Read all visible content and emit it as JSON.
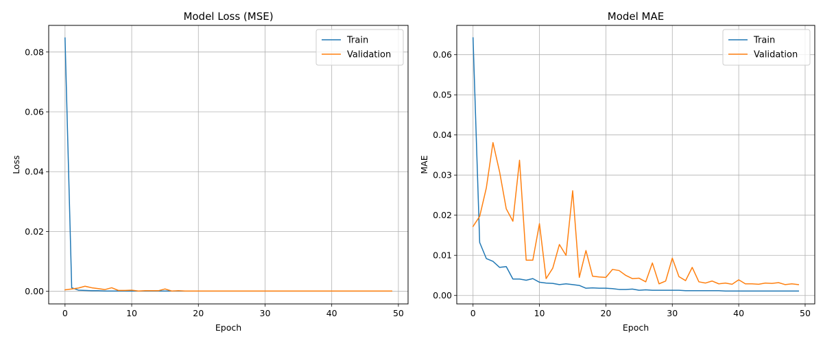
{
  "chart_data": [
    {
      "type": "line",
      "title": "Model Loss (MSE)",
      "xlabel": "Epoch",
      "ylabel": "Loss",
      "xlim": [
        -2.45,
        51.45
      ],
      "ylim": [
        -0.0042,
        0.0889
      ],
      "xticks": [
        0,
        10,
        20,
        30,
        40,
        50
      ],
      "xtick_labels": [
        "0",
        "10",
        "20",
        "30",
        "40",
        "50"
      ],
      "yticks": [
        0.0,
        0.02,
        0.04,
        0.06,
        0.08
      ],
      "ytick_labels": [
        "0.00",
        "0.02",
        "0.04",
        "0.06",
        "0.08"
      ],
      "grid": true,
      "legend": "top-right",
      "x": [
        0,
        1,
        2,
        3,
        4,
        5,
        6,
        7,
        8,
        9,
        10,
        11,
        12,
        13,
        14,
        15,
        16,
        17,
        18,
        19,
        20,
        21,
        22,
        23,
        24,
        25,
        26,
        27,
        28,
        29,
        30,
        31,
        32,
        33,
        34,
        35,
        36,
        37,
        38,
        39,
        40,
        41,
        42,
        43,
        44,
        45,
        46,
        47,
        48,
        49
      ],
      "series": [
        {
          "name": "Train",
          "color": "#1f77b4",
          "values": [
            0.0847,
            0.0012,
            0.0004,
            0.0003,
            0.0002,
            0.0002,
            0.0001,
            0.0001,
            0.0001,
            0.0001,
            0.0001,
            0.0001,
            0.0001,
            0.0001,
            0.0001,
            0.0001,
            0.0001,
            0.0001,
            0.0001,
            0.0001,
            0.0001,
            0.0001,
            0.0001,
            0.0001,
            0.0001,
            0.0001,
            0.0001,
            0.0001,
            0.0001,
            0.0001,
            0.0001,
            0.0001,
            0.0001,
            0.0001,
            0.0001,
            0.0001,
            0.0001,
            0.0001,
            0.0001,
            0.0001,
            0.0001,
            0.0001,
            0.0001,
            0.0001,
            0.0001,
            0.0001,
            0.0001,
            0.0001,
            0.0001,
            0.0001
          ]
        },
        {
          "name": "Validation",
          "color": "#ff7f0e",
          "values": [
            0.0005,
            0.0008,
            0.0011,
            0.0017,
            0.0012,
            0.0009,
            0.0006,
            0.0012,
            0.0003,
            0.0003,
            0.0004,
            0.0001,
            0.0002,
            0.0002,
            0.0002,
            0.0008,
            0.0001,
            0.0002,
            0.0001,
            0.0001,
            0.0001,
            0.0001,
            0.0001,
            0.0001,
            0.0001,
            0.0001,
            0.0001,
            0.0001,
            0.0001,
            0.0001,
            0.0001,
            0.0001,
            0.0001,
            0.0001,
            0.0001,
            0.0001,
            0.0001,
            0.0001,
            0.0001,
            0.0001,
            0.0001,
            0.0001,
            0.0001,
            0.0001,
            0.0001,
            0.0001,
            0.0001,
            0.0001,
            0.0001,
            0.0001
          ]
        }
      ]
    },
    {
      "type": "line",
      "title": "Model MAE",
      "xlabel": "Epoch",
      "ylabel": "MAE",
      "xlim": [
        -2.45,
        51.45
      ],
      "ylim": [
        -0.0021,
        0.0673
      ],
      "xticks": [
        0,
        10,
        20,
        30,
        40,
        50
      ],
      "xtick_labels": [
        "0",
        "10",
        "20",
        "30",
        "40",
        "50"
      ],
      "yticks": [
        0.0,
        0.01,
        0.02,
        0.03,
        0.04,
        0.05,
        0.06
      ],
      "ytick_labels": [
        "0.00",
        "0.01",
        "0.02",
        "0.03",
        "0.04",
        "0.05",
        "0.06"
      ],
      "grid": true,
      "legend": "top-right",
      "x": [
        0,
        1,
        2,
        3,
        4,
        5,
        6,
        7,
        8,
        9,
        10,
        11,
        12,
        13,
        14,
        15,
        16,
        17,
        18,
        19,
        20,
        21,
        22,
        23,
        24,
        25,
        26,
        27,
        28,
        29,
        30,
        31,
        32,
        33,
        34,
        35,
        36,
        37,
        38,
        39,
        40,
        41,
        42,
        43,
        44,
        45,
        46,
        47,
        48,
        49
      ],
      "series": [
        {
          "name": "Train",
          "color": "#1f77b4",
          "values": [
            0.0642,
            0.0132,
            0.0092,
            0.0085,
            0.007,
            0.0072,
            0.0041,
            0.0041,
            0.0038,
            0.0042,
            0.0033,
            0.0031,
            0.003,
            0.0027,
            0.0029,
            0.0027,
            0.0025,
            0.0018,
            0.0019,
            0.0018,
            0.0018,
            0.0017,
            0.0015,
            0.0015,
            0.0016,
            0.0013,
            0.0014,
            0.0013,
            0.0013,
            0.0013,
            0.0013,
            0.0013,
            0.0012,
            0.0012,
            0.0012,
            0.0012,
            0.0012,
            0.0012,
            0.0011,
            0.0011,
            0.0011,
            0.0011,
            0.0011,
            0.0011,
            0.0011,
            0.0011,
            0.0011,
            0.0011,
            0.0011,
            0.0011
          ]
        },
        {
          "name": "Validation",
          "color": "#ff7f0e",
          "values": [
            0.0172,
            0.0197,
            0.0268,
            0.0381,
            0.0308,
            0.0216,
            0.0185,
            0.0337,
            0.0088,
            0.0088,
            0.0179,
            0.0042,
            0.0068,
            0.0127,
            0.01,
            0.0261,
            0.0045,
            0.0112,
            0.0048,
            0.0046,
            0.0045,
            0.0065,
            0.0062,
            0.005,
            0.0042,
            0.0043,
            0.0034,
            0.0081,
            0.0029,
            0.0036,
            0.0093,
            0.0047,
            0.0037,
            0.007,
            0.0034,
            0.0031,
            0.0036,
            0.0029,
            0.0031,
            0.0028,
            0.0039,
            0.0029,
            0.0029,
            0.0028,
            0.0031,
            0.003,
            0.0032,
            0.0027,
            0.0029,
            0.0027
          ]
        }
      ]
    }
  ]
}
